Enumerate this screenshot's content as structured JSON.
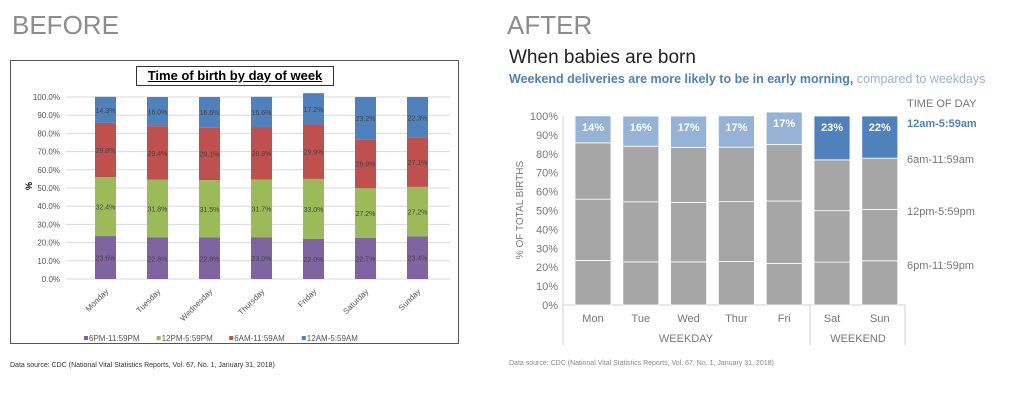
{
  "before_heading": "BEFORE",
  "after_heading": "AFTER",
  "source": "Data source: CDC (National Vital Statistics Reports, Vol. 67, No. 1, January 31, 2018)",
  "chart_data": [
    {
      "type": "bar",
      "stacked": true,
      "title": "Time of birth by day of week",
      "ylabel": "%",
      "ylim": [
        0,
        100
      ],
      "yticks": [
        "0.0%",
        "10.0%",
        "20.0%",
        "30.0%",
        "40.0%",
        "50.0%",
        "60.0%",
        "70.0%",
        "80.0%",
        "90.0%",
        "100.0%"
      ],
      "categories": [
        "Monday",
        "Tuesday",
        "Wednesday",
        "Thursday",
        "Friday",
        "Saturday",
        "Sunday"
      ],
      "grid": true,
      "legend": "bottom",
      "series": [
        {
          "name": "6PM-11:59PM",
          "color": "#8064a2",
          "values": [
            23.6,
            22.8,
            22.8,
            23.0,
            22.0,
            22.7,
            23.4
          ],
          "labels": [
            "23.6%",
            "22.8%",
            "22.8%",
            "23.0%",
            "22.0%",
            "22.7%",
            "23.4%"
          ]
        },
        {
          "name": "12PM-5:59PM",
          "color": "#9bbb59",
          "values": [
            32.4,
            31.8,
            31.5,
            31.7,
            33.0,
            27.2,
            27.2
          ],
          "labels": [
            "32.4%",
            "31.8%",
            "31.5%",
            "31.7%",
            "33.0%",
            "27.2%",
            "27.2%"
          ]
        },
        {
          "name": "6AM-11:59AM",
          "color": "#c0504d",
          "values": [
            29.8,
            29.4,
            29.1,
            28.8,
            29.9,
            26.9,
            27.1
          ],
          "labels": [
            "29.8%",
            "29.4%",
            "29.1%",
            "28.8%",
            "29.9%",
            "26.9%",
            "27.1%"
          ]
        },
        {
          "name": "12AM-5:59AM",
          "color": "#4f81bd",
          "values": [
            14.3,
            16.0,
            16.6,
            16.6,
            17.2,
            23.2,
            22.3
          ],
          "labels": [
            "14.3%",
            "16.0%",
            "16.6%",
            "16.6%",
            "17.2%",
            "23.2%",
            "22.3%"
          ]
        }
      ]
    },
    {
      "type": "bar",
      "stacked": true,
      "title": "When babies are born",
      "subtitle_bold": "Weekend deliveries are more likely to be in early morning,",
      "subtitle_light": " compared to weekdays",
      "ylabel": "% OF TOTAL BIRTHS",
      "ylim": [
        0,
        100
      ],
      "yticks": [
        "0%",
        "10%",
        "20%",
        "30%",
        "40%",
        "50%",
        "60%",
        "70%",
        "80%",
        "90%",
        "100%"
      ],
      "categories": [
        "Mon",
        "Tue",
        "Wed",
        "Thur",
        "Fri",
        "Sat",
        "Sun"
      ],
      "groups": [
        "WEEKDAY",
        "WEEKEND"
      ],
      "legend_title": "TIME OF DAY",
      "series": [
        {
          "name": "6pm-11:59pm",
          "color": "#a6a6a6",
          "values": [
            23.6,
            22.8,
            22.8,
            23.0,
            22.0,
            22.7,
            23.4
          ]
        },
        {
          "name": "12pm-5:59pm",
          "color": "#a6a6a6",
          "values": [
            32.4,
            31.8,
            31.5,
            31.7,
            33.0,
            27.2,
            27.2
          ]
        },
        {
          "name": "6am-11:59am",
          "color": "#a6a6a6",
          "values": [
            29.8,
            29.4,
            29.1,
            28.8,
            29.9,
            26.9,
            27.1
          ]
        },
        {
          "name": "12am-5:59am",
          "color": "#95b3d7",
          "highlight_color": "#4f81bd",
          "values": [
            14.3,
            16.0,
            16.6,
            16.6,
            17.2,
            23.2,
            22.3
          ],
          "labels": [
            "14%",
            "16%",
            "17%",
            "17%",
            "17%",
            "23%",
            "22%"
          ]
        }
      ]
    }
  ]
}
